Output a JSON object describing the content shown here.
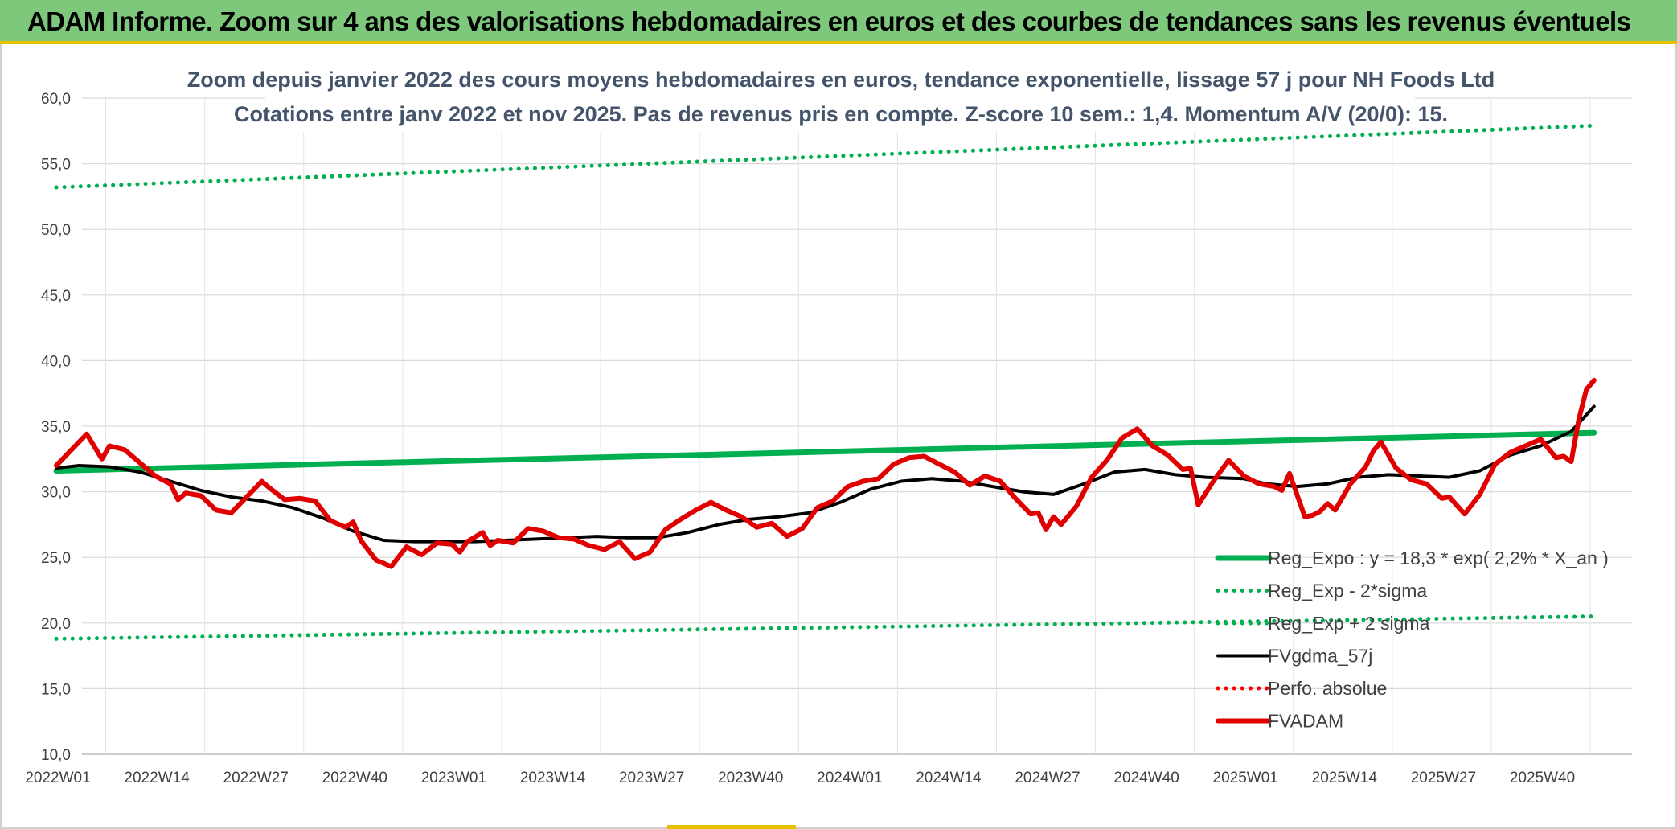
{
  "header": {
    "title": "ADAM Informe. Zoom sur 4 ans des valorisations hebdomadaires en euros et des courbes de tendances sans les revenus éventuels"
  },
  "chart_data": {
    "type": "line",
    "title": "Zoom depuis janvier 2022 des cours moyens hebdomadaires en euros, tendance exponentielle, lissage 57 j pour NH Foods Ltd",
    "subtitle": "Cotations entre janv 2022 et nov 2025. Pas de revenus pris en compte. Z-score 10 sem.: 1,4. Momentum A/V (20/0): 15.",
    "ylim": [
      10,
      60
    ],
    "y_ticks": [
      "10,0",
      "15,0",
      "20,0",
      "25,0",
      "30,0",
      "35,0",
      "40,0",
      "45,0",
      "50,0",
      "55,0",
      "60,0"
    ],
    "x_ticks": [
      "2022W01",
      "2022W14",
      "2022W27",
      "2022W40",
      "2023W01",
      "2023W14",
      "2023W27",
      "2023W40",
      "2024W01",
      "2024W14",
      "2024W27",
      "2024W40",
      "2025W01",
      "2025W14",
      "2025W27",
      "2025W40"
    ],
    "grid": true,
    "legend_position": "bottom-right",
    "series": [
      {
        "name": "Reg_Expo : y = 18,3 * exp( 2,2% *  X_an )",
        "color": "#00b050",
        "style": "solid-thick",
        "x": [
          "2022W01",
          "2025W47"
        ],
        "y": [
          31.6,
          34.5
        ]
      },
      {
        "name": "Reg_Exp - 2*sigma",
        "color": "#00b050",
        "style": "dotted",
        "x": [
          "2022W01",
          "2025W47"
        ],
        "y": [
          18.8,
          20.5
        ]
      },
      {
        "name": "Reg_Exp + 2 sigma",
        "color": "#00b050",
        "style": "dotted",
        "x": [
          "2022W01",
          "2025W47"
        ],
        "y": [
          53.2,
          57.9
        ]
      },
      {
        "name": "FVgdma_57j",
        "color": "#000000",
        "style": "solid",
        "x": [
          "2022W01",
          "2022W04",
          "2022W08",
          "2022W12",
          "2022W16",
          "2022W20",
          "2022W24",
          "2022W28",
          "2022W32",
          "2022W36",
          "2022W40",
          "2022W44",
          "2022W48",
          "2022W52",
          "2023W04",
          "2023W08",
          "2023W12",
          "2023W16",
          "2023W20",
          "2023W24",
          "2023W28",
          "2023W32",
          "2023W36",
          "2023W40",
          "2023W44",
          "2023W48",
          "2023W52",
          "2024W04",
          "2024W08",
          "2024W12",
          "2024W16",
          "2024W20",
          "2024W24",
          "2024W28",
          "2024W32",
          "2024W36",
          "2024W40",
          "2024W44",
          "2024W48",
          "2025W01",
          "2025W04",
          "2025W08",
          "2025W12",
          "2025W16",
          "2025W20",
          "2025W24",
          "2025W28",
          "2025W32",
          "2025W36",
          "2025W40",
          "2025W44",
          "2025W47"
        ],
        "y": [
          31.8,
          32.0,
          31.9,
          31.5,
          30.8,
          30.1,
          29.6,
          29.3,
          28.8,
          28.0,
          27.0,
          26.3,
          26.2,
          26.2,
          26.2,
          26.3,
          26.4,
          26.5,
          26.6,
          26.5,
          26.5,
          26.9,
          27.5,
          27.9,
          28.1,
          28.4,
          29.2,
          30.2,
          30.8,
          31.0,
          30.8,
          30.4,
          30.0,
          29.8,
          30.6,
          31.5,
          31.7,
          31.3,
          31.1,
          31.0,
          30.6,
          30.4,
          30.6,
          31.1,
          31.3,
          31.2,
          31.1,
          31.6,
          32.8,
          33.5,
          34.6,
          36.5
        ]
      },
      {
        "name": "Perfo. absolue",
        "color": "#ff0000",
        "style": "dotted",
        "x": [],
        "y": []
      },
      {
        "name": "FVADAM",
        "color": "#e00000",
        "style": "solid-thick",
        "x": [
          "2022W01",
          "2022W03",
          "2022W05",
          "2022W07",
          "2022W08",
          "2022W10",
          "2022W12",
          "2022W14",
          "2022W16",
          "2022W17",
          "2022W18",
          "2022W20",
          "2022W22",
          "2022W24",
          "2022W26",
          "2022W28",
          "2022W29",
          "2022W31",
          "2022W33",
          "2022W35",
          "2022W37",
          "2022W39",
          "2022W40",
          "2022W41",
          "2022W43",
          "2022W45",
          "2022W47",
          "2022W49",
          "2022W51",
          "2023W01",
          "2023W02",
          "2023W03",
          "2023W05",
          "2023W06",
          "2023W07",
          "2023W09",
          "2023W11",
          "2023W13",
          "2023W15",
          "2023W17",
          "2023W19",
          "2023W21",
          "2023W23",
          "2023W25",
          "2023W27",
          "2023W29",
          "2023W31",
          "2023W33",
          "2023W35",
          "2023W37",
          "2023W39",
          "2023W41",
          "2023W43",
          "2023W45",
          "2023W47",
          "2023W49",
          "2023W51",
          "2024W01",
          "2024W03",
          "2024W05",
          "2024W07",
          "2024W09",
          "2024W11",
          "2024W13",
          "2024W15",
          "2024W17",
          "2024W19",
          "2024W21",
          "2024W23",
          "2024W25",
          "2024W26",
          "2024W27",
          "2024W28",
          "2024W29",
          "2024W31",
          "2024W33",
          "2024W35",
          "2024W37",
          "2024W39",
          "2024W41",
          "2024W43",
          "2024W45",
          "2024W46",
          "2024W47",
          "2024W49",
          "2024W51",
          "2025W01",
          "2025W03",
          "2025W05",
          "2025W06",
          "2025W07",
          "2025W09",
          "2025W10",
          "2025W11",
          "2025W12",
          "2025W13",
          "2025W15",
          "2025W17",
          "2025W18",
          "2025W19",
          "2025W21",
          "2025W23",
          "2025W25",
          "2025W27",
          "2025W28",
          "2025W30",
          "2025W32",
          "2025W34",
          "2025W36",
          "2025W38",
          "2025W40",
          "2025W42",
          "2025W43",
          "2025W44",
          "2025W45",
          "2025W46",
          "2025W47"
        ],
        "y": [
          32.0,
          33.2,
          34.4,
          32.5,
          33.5,
          33.2,
          32.2,
          31.2,
          30.6,
          29.4,
          29.9,
          29.7,
          28.6,
          28.4,
          29.6,
          30.8,
          30.3,
          29.4,
          29.5,
          29.3,
          27.8,
          27.3,
          27.7,
          26.3,
          24.8,
          24.3,
          25.8,
          25.2,
          26.1,
          26.0,
          25.4,
          26.2,
          26.9,
          25.9,
          26.3,
          26.1,
          27.2,
          27.0,
          26.5,
          26.4,
          25.9,
          25.6,
          26.2,
          24.9,
          25.4,
          27.1,
          27.9,
          28.6,
          29.2,
          28.6,
          28.1,
          27.3,
          27.6,
          26.6,
          27.2,
          28.8,
          29.3,
          30.4,
          30.8,
          31.0,
          32.1,
          32.6,
          32.7,
          32.1,
          31.5,
          30.5,
          31.2,
          30.8,
          29.5,
          28.3,
          28.4,
          27.1,
          28.1,
          27.5,
          28.9,
          31.1,
          32.4,
          34.1,
          34.8,
          33.5,
          32.8,
          31.7,
          31.8,
          29.0,
          30.8,
          32.4,
          31.2,
          30.6,
          30.4,
          30.1,
          31.4,
          28.1,
          28.2,
          28.5,
          29.1,
          28.6,
          30.6,
          31.9,
          33.1,
          33.8,
          31.8,
          30.9,
          30.6,
          29.5,
          29.6,
          28.3,
          29.8,
          32.1,
          33.0,
          33.5,
          34.0,
          32.6,
          32.7,
          32.3,
          35.5,
          37.8,
          38.5
        ]
      }
    ]
  }
}
